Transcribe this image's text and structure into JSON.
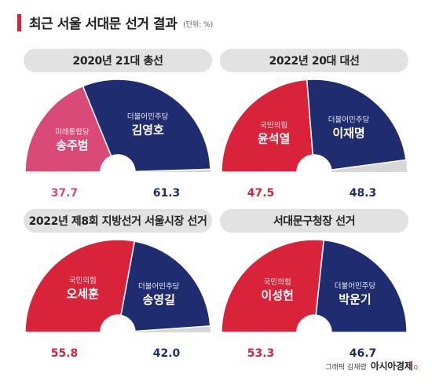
{
  "header": {
    "title": "최근 서울 서대문 선거 결과",
    "unit": "(단위: %)"
  },
  "footer": {
    "credit": "그래픽 김채령",
    "brand": "아시아경제",
    "brand_mark": "Q"
  },
  "colors": {
    "left_party_2020": "#d94a78",
    "conservative": "#d9233a",
    "democratic": "#1f2c6f",
    "other": "#d7d7d7"
  },
  "chart_data": [
    {
      "type": "pie",
      "title": "2020년 21대 총선",
      "slices": [
        {
          "party": "미래통합당",
          "candidate": "송주범",
          "value": 37.7,
          "color": "#d94a78"
        },
        {
          "party": "더불어민주당",
          "candidate": "김영호",
          "value": 61.3,
          "color": "#1f2c6f"
        }
      ]
    },
    {
      "type": "pie",
      "title": "2022년 20대 대선",
      "slices": [
        {
          "party": "국민의힘",
          "candidate": "윤석열",
          "value": 47.5,
          "color": "#d9233a"
        },
        {
          "party": "더불어민주당",
          "candidate": "이재명",
          "value": 48.3,
          "color": "#1f2c6f"
        }
      ]
    },
    {
      "type": "pie",
      "title": "2022년 제8회 지방선거 서울시장 선거",
      "slices": [
        {
          "party": "국민의힘",
          "candidate": "오세훈",
          "value": 55.8,
          "color": "#d9233a"
        },
        {
          "party": "더불어민주당",
          "candidate": "송영길",
          "value": 42.0,
          "color": "#1f2c6f"
        }
      ]
    },
    {
      "type": "pie",
      "title": "서대문구청장 선거",
      "slices": [
        {
          "party": "국민의힘",
          "candidate": "이성헌",
          "value": 53.3,
          "color": "#d9233a"
        },
        {
          "party": "더불어민주당",
          "candidate": "박운기",
          "value": 46.7,
          "color": "#1f2c6f"
        }
      ]
    }
  ]
}
